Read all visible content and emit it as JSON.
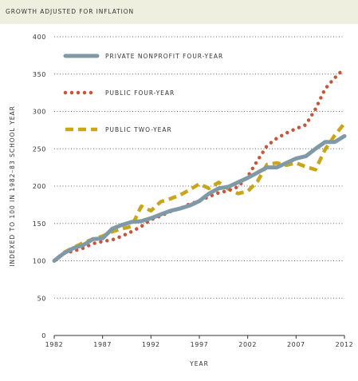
{
  "header": {
    "title": "GROWTH ADJUSTED FOR INFLATION",
    "band_color": "#efefdf"
  },
  "chart_data": {
    "type": "line",
    "title": "GROWTH ADJUSTED FOR INFLATION",
    "xlabel": "YEAR",
    "ylabel": "INDEXED TO 100 IN 1982–83 SCHOOL YEAR",
    "xlim": [
      1982,
      2012
    ],
    "ylim": [
      0,
      400
    ],
    "x_ticks": [
      1982,
      1987,
      1992,
      1997,
      2002,
      2007,
      2012
    ],
    "y_ticks": [
      0,
      50,
      100,
      150,
      200,
      250,
      300,
      350,
      400
    ],
    "grid": "horizontal dotted",
    "legend_position": "top-left",
    "x": [
      1982,
      1983,
      1984,
      1985,
      1986,
      1987,
      1988,
      1989,
      1990,
      1991,
      1992,
      1993,
      1994,
      1995,
      1996,
      1997,
      1998,
      1999,
      2000,
      2001,
      2002,
      2003,
      2004,
      2005,
      2006,
      2007,
      2008,
      2009,
      2010,
      2011,
      2012
    ],
    "series": [
      {
        "name": "PRIVATE NONPROFIT FOUR-YEAR",
        "style": "solid",
        "color": "#7f9aa6",
        "values": [
          100,
          110,
          117,
          121,
          129,
          130,
          143,
          148,
          152,
          153,
          157,
          162,
          167,
          170,
          174,
          180,
          190,
          197,
          199,
          205,
          211,
          218,
          225,
          225,
          231,
          237,
          240,
          250,
          259,
          259,
          267
        ]
      },
      {
        "name": "PUBLIC FOUR-YEAR",
        "style": "dotted",
        "color": "#c8553a",
        "values": [
          100,
          110,
          113,
          117,
          123,
          126,
          128,
          133,
          139,
          146,
          155,
          160,
          166,
          170,
          176,
          180,
          186,
          191,
          194,
          199,
          213,
          234,
          254,
          264,
          271,
          277,
          282,
          303,
          330,
          345,
          358
        ]
      },
      {
        "name": "PUBLIC TWO-YEAR",
        "style": "dashed",
        "color": "#c9a51a",
        "values": [
          100,
          111,
          118,
          124,
          129,
          133,
          139,
          143,
          146,
          173,
          167,
          179,
          183,
          188,
          195,
          203,
          197,
          205,
          196,
          190,
          193,
          206,
          229,
          231,
          228,
          231,
          226,
          222,
          249,
          268,
          284
        ]
      }
    ]
  }
}
